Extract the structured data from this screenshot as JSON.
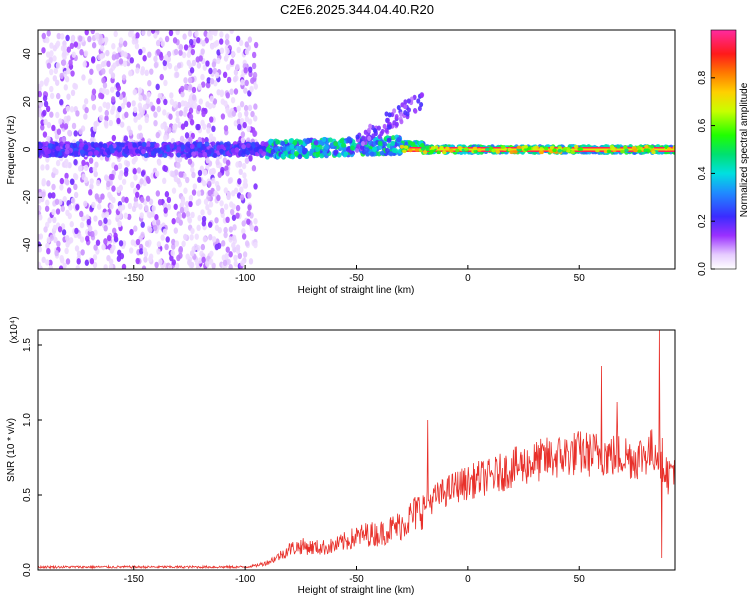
{
  "page_title": "C2E6.2025.344.04.40.R20",
  "colors": {
    "snr_line": "#e8302a",
    "axis": "#000000",
    "background": "#ffffff"
  },
  "chart_data": [
    {
      "type": "heatmap",
      "title": "C2E6.2025.344.04.40.R20",
      "xlabel": "Height of straight line (km)",
      "ylabel": "Frequency (Hz)",
      "xlim": [
        -193,
        93
      ],
      "ylim": [
        -50,
        50
      ],
      "xticks": [
        -150,
        -100,
        -50,
        0,
        50
      ],
      "yticks": [
        -40,
        -20,
        0,
        20,
        40
      ],
      "colorbar": {
        "label": "Normalized spectral amplitude",
        "range": [
          0,
          1
        ],
        "ticks": [
          0.0,
          0.2,
          0.4,
          0.6,
          0.8
        ],
        "tick_labels": [
          "0.0",
          "0.2",
          "0.4",
          "0.6",
          "0.8"
        ],
        "colormap": "rainbow (white-violet-blue-cyan-green-yellow-orange-red-pink)"
      },
      "features": [
        {
          "description": "diffuse low-amplitude scatter",
          "x_range": [
            -193,
            -95
          ],
          "freq_range": [
            -50,
            50
          ],
          "amplitude": 0.05
        },
        {
          "description": "carrier line near 0 Hz",
          "x_range": [
            -193,
            93
          ],
          "freq": 0
        },
        {
          "description": "strong carrier",
          "x_range": [
            -30,
            93
          ],
          "freq": 0,
          "amplitude": 0.95
        },
        {
          "description": "weak upward streak",
          "x_range": [
            -50,
            -20
          ],
          "freq_range": [
            2,
            22
          ]
        }
      ]
    },
    {
      "type": "line",
      "xlabel": "Height of straight line (km)",
      "ylabel": "SNR (10 * v/v)",
      "scale_label": "(x10⁴)",
      "xlim": [
        -193,
        93
      ],
      "ylim": [
        0,
        1.6
      ],
      "xticks": [
        -150,
        -100,
        -50,
        0,
        50
      ],
      "yticks": [
        0.0,
        0.5,
        1.0,
        1.5
      ],
      "ytick_labels": [
        "0.0",
        "0.5",
        "1.0",
        "1.5"
      ],
      "series": [
        {
          "name": "SNR",
          "x": [
            -193,
            -180,
            -170,
            -160,
            -150,
            -140,
            -130,
            -120,
            -110,
            -100,
            -95,
            -90,
            -85,
            -80,
            -75,
            -70,
            -65,
            -60,
            -55,
            -50,
            -45,
            -40,
            -35,
            -30,
            -25,
            -20,
            -15,
            -10,
            -5,
            0,
            5,
            10,
            15,
            20,
            25,
            30,
            35,
            40,
            45,
            50,
            55,
            60,
            65,
            70,
            75,
            80,
            85,
            88,
            90,
            93
          ],
          "values": [
            0.02,
            0.02,
            0.02,
            0.02,
            0.02,
            0.02,
            0.02,
            0.02,
            0.02,
            0.02,
            0.03,
            0.05,
            0.09,
            0.14,
            0.16,
            0.15,
            0.15,
            0.16,
            0.19,
            0.22,
            0.24,
            0.24,
            0.27,
            0.3,
            0.36,
            0.42,
            0.48,
            0.52,
            0.56,
            0.58,
            0.61,
            0.62,
            0.65,
            0.68,
            0.7,
            0.72,
            0.74,
            0.75,
            0.77,
            0.78,
            0.77,
            0.78,
            0.76,
            0.77,
            0.74,
            0.78,
            0.8,
            0.72,
            0.62,
            0.72
          ],
          "spikes": [
            {
              "x": -18,
              "value": 1.0
            },
            {
              "x": 60,
              "value": 1.36
            },
            {
              "x": 67,
              "value": 1.12
            },
            {
              "x": 86,
              "value": 1.6
            },
            {
              "x": 87,
              "value": 0.08
            }
          ]
        }
      ]
    }
  ]
}
